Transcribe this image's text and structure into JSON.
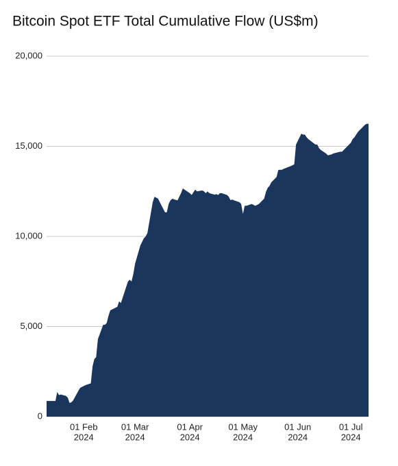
{
  "chart_data": {
    "type": "area",
    "title": "Bitcoin Spot ETF Total Cumulative Flow (US$m)",
    "color": "#1b365d",
    "grid": true,
    "x": [
      "2024-01-11",
      "2024-01-12",
      "2024-01-16",
      "2024-01-17",
      "2024-01-18",
      "2024-01-19",
      "2024-01-22",
      "2024-01-23",
      "2024-01-24",
      "2024-01-25",
      "2024-01-26",
      "2024-01-29",
      "2024-01-30",
      "2024-01-31",
      "2024-02-01",
      "2024-02-02",
      "2024-02-05",
      "2024-02-06",
      "2024-02-07",
      "2024-02-08",
      "2024-02-09",
      "2024-02-12",
      "2024-02-13",
      "2024-02-14",
      "2024-02-15",
      "2024-02-16",
      "2024-02-20",
      "2024-02-21",
      "2024-02-22",
      "2024-02-23",
      "2024-02-26",
      "2024-02-27",
      "2024-02-28",
      "2024-02-29",
      "2024-03-01",
      "2024-03-04",
      "2024-03-05",
      "2024-03-06",
      "2024-03-07",
      "2024-03-08",
      "2024-03-11",
      "2024-03-12",
      "2024-03-13",
      "2024-03-14",
      "2024-03-15",
      "2024-03-18",
      "2024-03-19",
      "2024-03-20",
      "2024-03-21",
      "2024-03-22",
      "2024-03-25",
      "2024-03-26",
      "2024-03-27",
      "2024-03-28",
      "2024-04-01",
      "2024-04-02",
      "2024-04-03",
      "2024-04-04",
      "2024-04-05",
      "2024-04-08",
      "2024-04-09",
      "2024-04-10",
      "2024-04-11",
      "2024-04-12",
      "2024-04-15",
      "2024-04-16",
      "2024-04-17",
      "2024-04-18",
      "2024-04-19",
      "2024-04-22",
      "2024-04-23",
      "2024-04-24",
      "2024-04-25",
      "2024-04-26",
      "2024-04-29",
      "2024-04-30",
      "2024-05-01",
      "2024-05-02",
      "2024-05-03",
      "2024-05-06",
      "2024-05-07",
      "2024-05-08",
      "2024-05-09",
      "2024-05-10",
      "2024-05-13",
      "2024-05-14",
      "2024-05-15",
      "2024-05-16",
      "2024-05-17",
      "2024-05-20",
      "2024-05-21",
      "2024-05-22",
      "2024-05-23",
      "2024-05-24",
      "2024-05-28",
      "2024-05-29",
      "2024-05-30",
      "2024-05-31",
      "2024-06-03",
      "2024-06-04",
      "2024-06-05",
      "2024-06-06",
      "2024-06-07",
      "2024-06-10",
      "2024-06-11",
      "2024-06-12",
      "2024-06-13",
      "2024-06-14",
      "2024-06-17",
      "2024-06-18",
      "2024-06-20",
      "2024-06-21",
      "2024-06-24",
      "2024-06-25",
      "2024-06-26",
      "2024-06-27",
      "2024-06-28",
      "2024-07-01",
      "2024-07-02",
      "2024-07-03",
      "2024-07-05",
      "2024-07-08",
      "2024-07-09",
      "2024-07-10",
      "2024-07-11"
    ],
    "values": [
      870,
      870,
      870,
      1370,
      1200,
      1230,
      1150,
      1050,
      760,
      800,
      900,
      1440,
      1600,
      1650,
      1700,
      1750,
      1850,
      2800,
      3200,
      3300,
      4300,
      5100,
      5100,
      5200,
      5600,
      5900,
      6100,
      6400,
      6300,
      6600,
      7500,
      7600,
      7500,
      7900,
      8480,
      9500,
      9700,
      9900,
      10000,
      10190,
      11900,
      12200,
      12150,
      12100,
      11900,
      11330,
      11350,
      11800,
      12000,
      12090,
      12000,
      12200,
      12400,
      12660,
      12400,
      12300,
      12450,
      12600,
      12500,
      12550,
      12500,
      12400,
      12500,
      12400,
      12320,
      12350,
      12300,
      12400,
      12400,
      12300,
      12200,
      12010,
      12050,
      12000,
      11900,
      11800,
      11250,
      11700,
      11700,
      11800,
      11750,
      11700,
      11750,
      11800,
      12100,
      12470,
      12700,
      12800,
      13000,
      13300,
      13690,
      13700,
      13700,
      13750,
      13900,
      13950,
      14000,
      15100,
      15700,
      15650,
      15650,
      15500,
      15400,
      15170,
      15100,
      15100,
      14900,
      14800,
      14600,
      14500,
      14550,
      14600,
      14675,
      14700,
      14700,
      14800,
      14900,
      15200,
      15400,
      15500,
      15800,
      16100,
      16200,
      16250,
      16250
    ],
    "xlim": [
      "2024-01-11",
      "2024-07-11"
    ],
    "xticks": [
      {
        "value": "2024-02-01",
        "label": [
          "01 Feb",
          "2024"
        ]
      },
      {
        "value": "2024-03-01",
        "label": [
          "01 Mar",
          "2024"
        ]
      },
      {
        "value": "2024-04-01",
        "label": [
          "01 Apr",
          "2024"
        ]
      },
      {
        "value": "2024-05-01",
        "label": [
          "01 May",
          "2024"
        ]
      },
      {
        "value": "2024-06-01",
        "label": [
          "01 Jun",
          "2024"
        ]
      },
      {
        "value": "2024-07-01",
        "label": [
          "01 Jul",
          "2024"
        ]
      }
    ],
    "ylim": [
      0,
      20000
    ],
    "yticks": [
      0,
      {
        "value": 5000,
        "label": "5,000"
      },
      {
        "value": 10000,
        "label": "10,000"
      },
      {
        "value": 15000,
        "label": "15,000"
      },
      {
        "value": 20000,
        "label": "20,000"
      }
    ]
  }
}
